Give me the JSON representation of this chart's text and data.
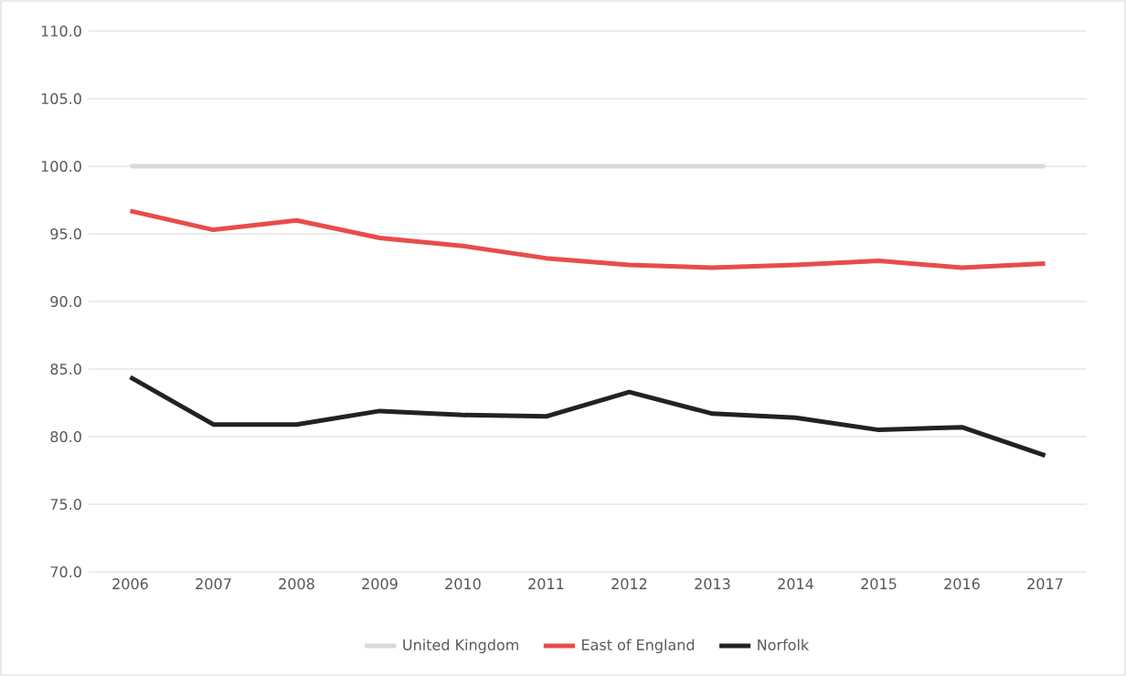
{
  "chart_data": {
    "type": "line",
    "categories": [
      "2006",
      "2007",
      "2008",
      "2009",
      "2010",
      "2011",
      "2012",
      "2013",
      "2014",
      "2015",
      "2016",
      "2017"
    ],
    "series": [
      {
        "name": "United Kingdom",
        "color": "#d9d9d9",
        "values": [
          100,
          100,
          100,
          100,
          100,
          100,
          100,
          100,
          100,
          100,
          100,
          100
        ]
      },
      {
        "name": "East of England",
        "color": "#e84c4a",
        "values": [
          96.7,
          95.3,
          96.0,
          94.7,
          94.1,
          93.2,
          92.7,
          92.5,
          92.7,
          93.0,
          92.5,
          92.8
        ]
      },
      {
        "name": "Norfolk",
        "color": "#1f2328",
        "values": [
          84.4,
          80.9,
          80.9,
          81.9,
          81.6,
          81.5,
          83.3,
          81.7,
          81.4,
          80.5,
          80.7,
          78.6
        ]
      }
    ],
    "ylim": [
      70,
      110
    ],
    "yticks": [
      {
        "value": 70,
        "label": "70.0"
      },
      {
        "value": 75,
        "label": "75.0"
      },
      {
        "value": 80,
        "label": "80.0"
      },
      {
        "value": 85,
        "label": "85.0"
      },
      {
        "value": 90,
        "label": "90.0"
      },
      {
        "value": 95,
        "label": "95.0"
      },
      {
        "value": 100,
        "label": "100.0"
      },
      {
        "value": 105,
        "label": "105.0"
      },
      {
        "value": 110,
        "label": "110.0"
      }
    ],
    "grid": "y",
    "legend": "bottom",
    "marker": "none",
    "line_style": "solid"
  }
}
